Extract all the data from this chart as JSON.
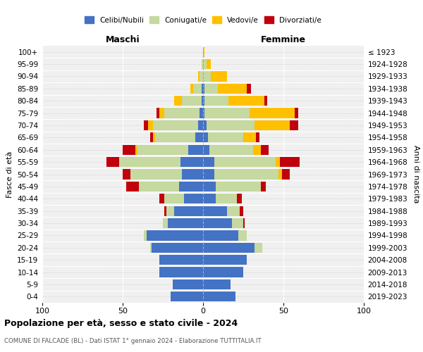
{
  "age_groups": [
    "0-4",
    "5-9",
    "10-14",
    "15-19",
    "20-24",
    "25-29",
    "30-34",
    "35-39",
    "40-44",
    "45-49",
    "50-54",
    "55-59",
    "60-64",
    "65-69",
    "70-74",
    "75-79",
    "80-84",
    "85-89",
    "90-94",
    "95-99",
    "100+"
  ],
  "birth_years": [
    "2019-2023",
    "2014-2018",
    "2009-2013",
    "2004-2008",
    "1999-2003",
    "1994-1998",
    "1989-1993",
    "1984-1988",
    "1979-1983",
    "1974-1978",
    "1969-1973",
    "1964-1968",
    "1959-1963",
    "1954-1958",
    "1949-1953",
    "1944-1948",
    "1939-1943",
    "1934-1938",
    "1929-1933",
    "1924-1928",
    "≤ 1923"
  ],
  "male": {
    "celibi": [
      20,
      19,
      27,
      27,
      32,
      35,
      22,
      18,
      12,
      15,
      13,
      14,
      9,
      5,
      3,
      2,
      1,
      1,
      0,
      0,
      0
    ],
    "coniugati": [
      0,
      0,
      0,
      0,
      1,
      2,
      3,
      5,
      12,
      25,
      32,
      38,
      32,
      25,
      28,
      22,
      12,
      5,
      2,
      1,
      0
    ],
    "vedovi": [
      0,
      0,
      0,
      0,
      0,
      0,
      0,
      0,
      0,
      0,
      0,
      0,
      1,
      1,
      3,
      3,
      5,
      2,
      1,
      0,
      0
    ],
    "divorziati": [
      0,
      0,
      0,
      0,
      0,
      0,
      0,
      1,
      3,
      8,
      5,
      8,
      8,
      2,
      3,
      2,
      0,
      0,
      0,
      0,
      0
    ]
  },
  "female": {
    "nubili": [
      20,
      17,
      25,
      27,
      32,
      22,
      18,
      15,
      8,
      8,
      7,
      7,
      4,
      3,
      2,
      1,
      1,
      1,
      0,
      0,
      0
    ],
    "coniugate": [
      0,
      0,
      0,
      0,
      5,
      5,
      7,
      8,
      13,
      28,
      40,
      38,
      27,
      22,
      30,
      28,
      15,
      8,
      5,
      2,
      0
    ],
    "vedove": [
      0,
      0,
      0,
      0,
      0,
      0,
      0,
      0,
      0,
      0,
      2,
      3,
      5,
      8,
      22,
      28,
      22,
      18,
      10,
      3,
      1
    ],
    "divorziate": [
      0,
      0,
      0,
      0,
      0,
      0,
      1,
      2,
      3,
      3,
      5,
      12,
      5,
      2,
      5,
      2,
      2,
      3,
      0,
      0,
      0
    ]
  },
  "colors": {
    "celibi": "#4472c4",
    "coniugati": "#c5d9a0",
    "vedovi": "#ffc000",
    "divorziati": "#c0000b"
  },
  "xlim": 100,
  "title": "Popolazione per età, sesso e stato civile - 2024",
  "subtitle": "COMUNE DI FALCADE (BL) - Dati ISTAT 1° gennaio 2024 - Elaborazione TUTTITALIA.IT",
  "ylabel_left": "Fasce di età",
  "ylabel_right": "Anni di nascita",
  "legend_labels": [
    "Celibi/Nubili",
    "Coniugati/e",
    "Vedovi/e",
    "Divorziati/e"
  ],
  "maschi_label": "Maschi",
  "femmine_label": "Femmine",
  "background_color": "#f0f0f0",
  "grid_color": "#cccccc"
}
